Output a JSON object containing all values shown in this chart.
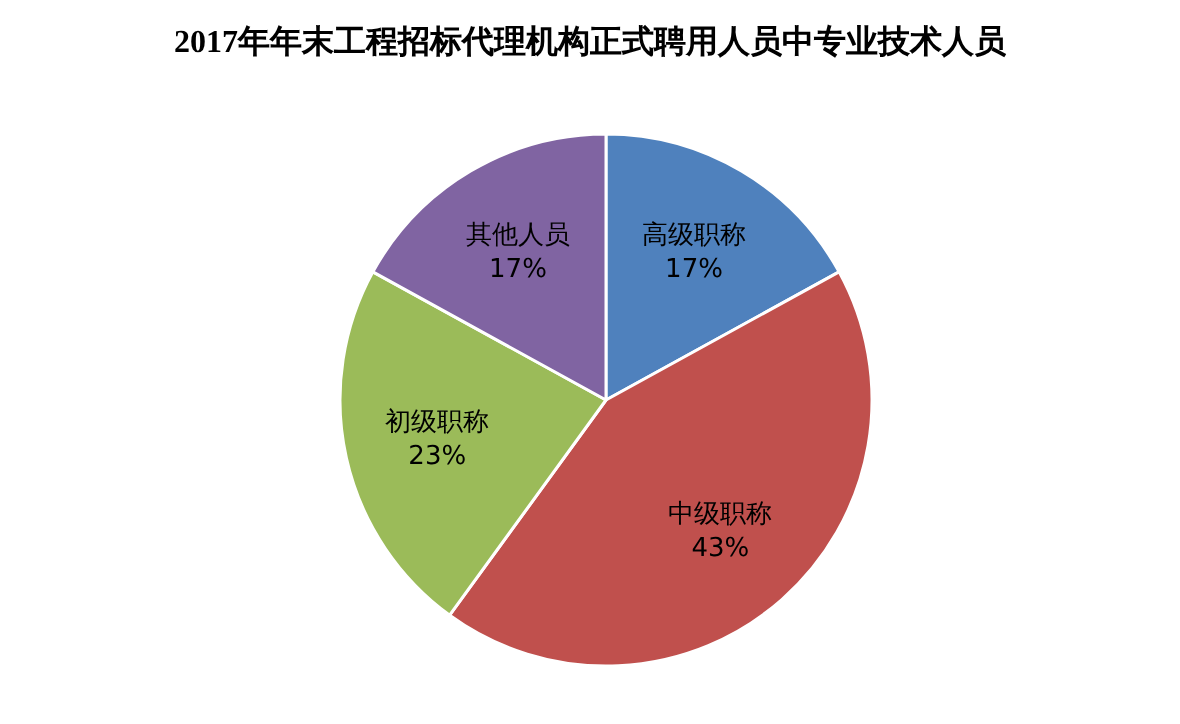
{
  "chart_data": {
    "type": "pie",
    "title": "2017年年末工程招标代理机构正式聘用人员中专业技术人员",
    "categories": [
      "高级职称",
      "中级职称",
      "初级职称",
      "其他人员"
    ],
    "values": [
      17,
      43,
      23,
      17
    ],
    "value_labels": [
      "17%",
      "43%",
      "23%",
      "17%"
    ],
    "colors": [
      "#4f81bd",
      "#c0504d",
      "#9bbb59",
      "#8064a2"
    ]
  }
}
